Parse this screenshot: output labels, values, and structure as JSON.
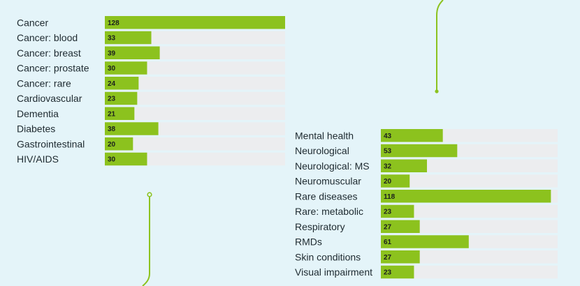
{
  "colors": {
    "background": "#e4f4f9",
    "bar": "#8cc21e",
    "track": "#ecedef",
    "accent_line": "#8cc21e",
    "label_text": "#1e2a30",
    "value_text": "#1b1f1c"
  },
  "chart_data": [
    {
      "type": "bar",
      "orientation": "horizontal",
      "categories": [
        "Cancer",
        "Cancer: blood",
        "Cancer: breast",
        "Cancer: prostate",
        "Cancer: rare",
        "Cardiovascular",
        "Dementia",
        "Diabetes",
        "Gastrointestinal",
        "HIV/AIDS"
      ],
      "values": [
        128,
        33,
        39,
        30,
        24,
        23,
        21,
        38,
        20,
        30
      ],
      "xlim": [
        0,
        128
      ],
      "data_labels": true,
      "grid": false,
      "title": "",
      "xlabel": "",
      "ylabel": ""
    },
    {
      "type": "bar",
      "orientation": "horizontal",
      "categories": [
        "Mental health",
        "Neurological",
        "Neurological: MS",
        "Neuromuscular",
        "Rare diseases",
        "Rare: metabolic",
        "Respiratory",
        "RMDs",
        "Skin conditions",
        "Visual impairment"
      ],
      "values": [
        43,
        53,
        32,
        20,
        118,
        23,
        27,
        61,
        27,
        23
      ],
      "xlim": [
        0,
        128
      ],
      "data_labels": true,
      "grid": false,
      "title": "",
      "xlabel": "",
      "ylabel": ""
    }
  ]
}
